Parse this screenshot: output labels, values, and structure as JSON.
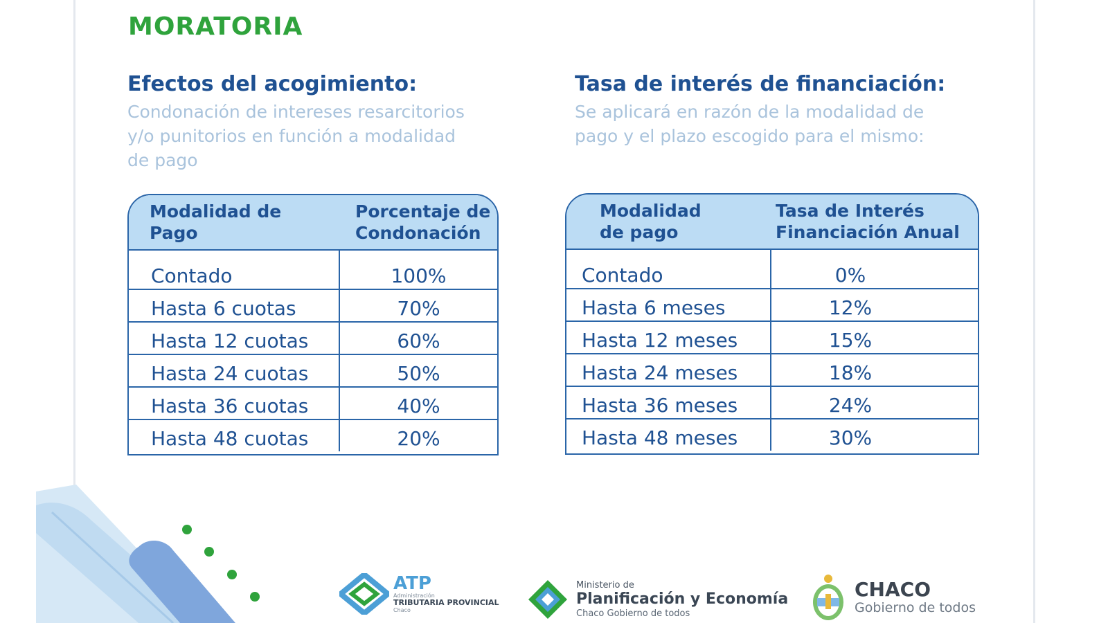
{
  "page": {
    "title": "MORATORIA"
  },
  "left_section": {
    "heading": "Efectos del acogimiento:",
    "description_lines": [
      "Condonación de intereses resarcitorios",
      "y/o punitorios en función a modalidad",
      "de pago"
    ],
    "table": {
      "header": [
        "Modalidad de Pago",
        "Porcentaje de Condonación"
      ],
      "header_lines": [
        [
          "Modalidad de",
          "Pago"
        ],
        [
          "Porcentaje de",
          "Condonación"
        ]
      ],
      "rows": [
        [
          "Contado",
          "100%"
        ],
        [
          "Hasta 6 cuotas",
          "70%"
        ],
        [
          "Hasta 12 cuotas",
          "60%"
        ],
        [
          "Hasta 24 cuotas",
          "50%"
        ],
        [
          "Hasta 36 cuotas",
          "40%"
        ],
        [
          "Hasta 48 cuotas",
          "20%"
        ]
      ]
    }
  },
  "right_section": {
    "heading": "Tasa de interés de financiación:",
    "description_lines": [
      "Se aplicará en razón de la modalidad de",
      "pago y el plazo escogido para el mismo:"
    ],
    "table": {
      "header": [
        "Modalidad de pago",
        "Tasa de Interés Financiación Anual"
      ],
      "header_lines": [
        [
          "Modalidad",
          "de pago"
        ],
        [
          "Tasa de Interés",
          "Financiación Anual"
        ]
      ],
      "rows": [
        [
          "Contado",
          "0%"
        ],
        [
          "Hasta 6 meses",
          "12%"
        ],
        [
          "Hasta 12 meses",
          "15%"
        ],
        [
          "Hasta 24 meses",
          "18%"
        ],
        [
          "Hasta 36 meses",
          "24%"
        ],
        [
          "Hasta 48 meses",
          "30%"
        ]
      ]
    }
  },
  "footer": {
    "atp": {
      "name": "ATP",
      "line1": "Administración",
      "line2": "TRIBUTARIA PROVINCIAL",
      "line3": "Chaco"
    },
    "planificacion": {
      "line1": "Ministerio de",
      "line2": "Planificación y Economía",
      "line3": "Chaco Gobierno de todos"
    },
    "chaco": {
      "name": "CHACO",
      "tagline": "Gobierno de todos"
    }
  },
  "colors": {
    "title_green": "#2fa33c",
    "heading_blue": "#1f5192",
    "desc_light_blue": "#a9c3dc",
    "table_header_bg": "#bcdcf4",
    "table_border": "#2a65a8"
  },
  "icons": [
    "atp-logo-icon",
    "planificacion-logo-icon",
    "chaco-shield-icon"
  ]
}
